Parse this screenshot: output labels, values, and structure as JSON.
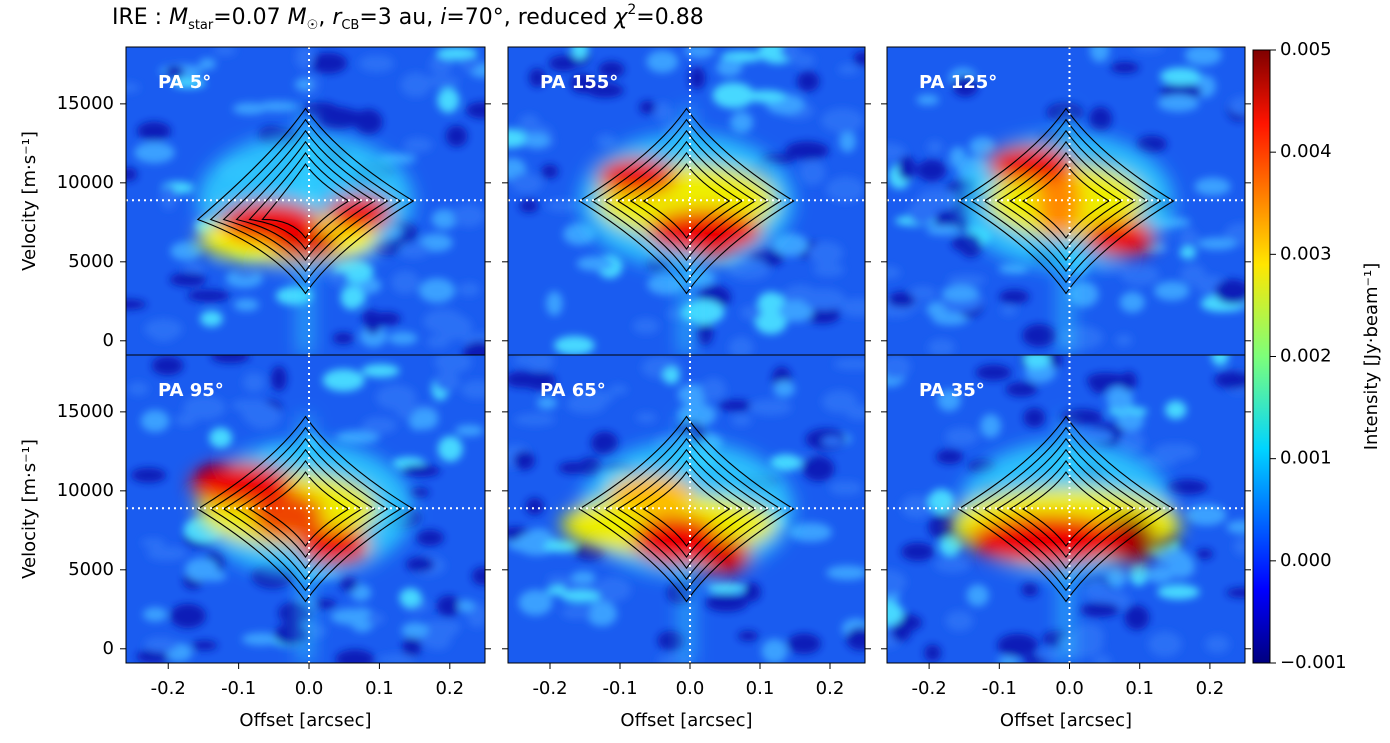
{
  "title_parts": [
    "IRE : ",
    "M",
    "star",
    "=0.07 ",
    "M",
    "☉",
    ", ",
    "r",
    "CB",
    "=3 au, ",
    "i",
    "=70°, reduced ",
    "χ",
    "2",
    "=0.88"
  ],
  "chart_data": [
    {
      "type": "heatmap",
      "annotation": "PA 5°",
      "xlim": [
        -0.26,
        0.25
      ],
      "ylim": [
        -900,
        18600
      ],
      "xticks": [
        -0.2,
        -0.1,
        {
          "value": 0,
          "label": "0.0"
        },
        0.1,
        0.2
      ],
      "yticks": [
        0,
        5000,
        10000,
        15000
      ],
      "ylabel": "Velocity [m·s⁻¹]",
      "reference_lines": {
        "x": 0,
        "y": 8900
      }
    },
    {
      "type": "heatmap",
      "annotation": "PA 155°",
      "xlim": [
        -0.26,
        0.25
      ],
      "ylim": [
        -900,
        18600
      ],
      "xticks": [
        -0.2,
        -0.1,
        {
          "value": 0,
          "label": "0.0"
        },
        0.1,
        0.2
      ],
      "yticks": [
        0,
        5000,
        10000,
        15000
      ],
      "reference_lines": {
        "x": 0,
        "y": 8900
      }
    },
    {
      "type": "heatmap",
      "annotation": "PA 125°",
      "xlim": [
        -0.26,
        0.25
      ],
      "ylim": [
        -900,
        18600
      ],
      "xticks": [
        -0.2,
        -0.1,
        {
          "value": 0,
          "label": "0.0"
        },
        0.1,
        0.2
      ],
      "yticks": [
        0,
        5000,
        10000,
        15000
      ],
      "reference_lines": {
        "x": 0,
        "y": 8900
      }
    },
    {
      "type": "heatmap",
      "annotation": "PA 95°",
      "xlim": [
        -0.26,
        0.25
      ],
      "ylim": [
        -900,
        18600
      ],
      "xticks": [
        -0.2,
        -0.1,
        {
          "value": 0,
          "label": "0.0"
        },
        0.1,
        0.2
      ],
      "yticks": [
        0,
        5000,
        10000,
        15000
      ],
      "xlabel": "Offset [arcsec]",
      "ylabel": "Velocity [m·s⁻¹]",
      "reference_lines": {
        "x": 0,
        "y": 8900
      }
    },
    {
      "type": "heatmap",
      "annotation": "PA 65°",
      "xlim": [
        -0.26,
        0.25
      ],
      "ylim": [
        -900,
        18600
      ],
      "xticks": [
        -0.2,
        -0.1,
        {
          "value": 0,
          "label": "0.0"
        },
        0.1,
        0.2
      ],
      "yticks": [
        0,
        5000,
        10000,
        15000
      ],
      "xlabel": "Offset [arcsec]",
      "reference_lines": {
        "x": 0,
        "y": 8900
      }
    },
    {
      "type": "heatmap",
      "annotation": "PA 35°",
      "xlim": [
        -0.26,
        0.25
      ],
      "ylim": [
        -900,
        18600
      ],
      "xticks": [
        -0.2,
        -0.1,
        {
          "value": 0,
          "label": "0.0"
        },
        0.1,
        0.2
      ],
      "yticks": [
        0,
        5000,
        10000,
        15000
      ],
      "xlabel": "Offset [arcsec]",
      "reference_lines": {
        "x": 0,
        "y": 8900
      }
    }
  ],
  "colorbar": {
    "label": "Intensity [Jy·beam⁻¹]",
    "clim": [
      -0.001,
      0.005
    ],
    "ticks": [
      {
        "value": -0.001,
        "label": "−0.001"
      },
      {
        "value": 0,
        "label": "0.000"
      },
      0.001,
      0.002,
      0.003,
      0.004,
      0.005
    ]
  }
}
